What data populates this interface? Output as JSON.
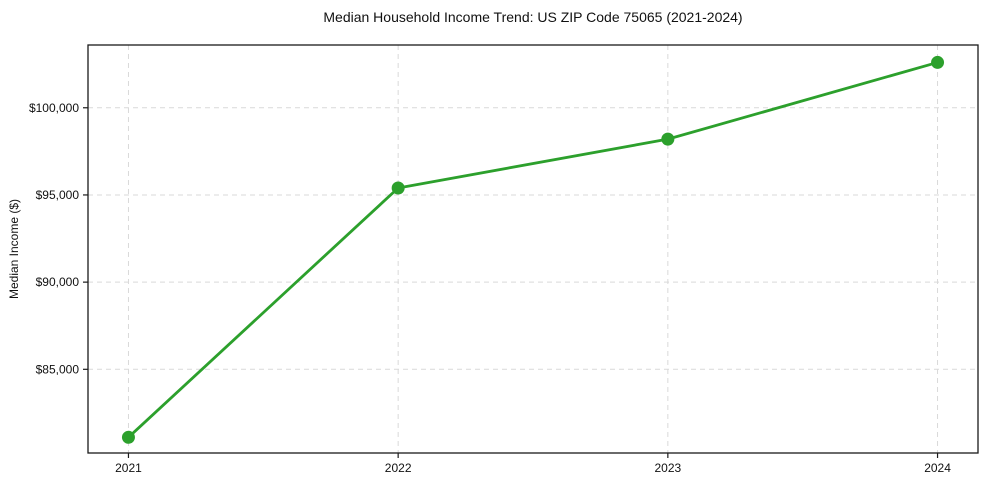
{
  "chart_data": {
    "type": "line",
    "title": "Median Household Income Trend: US ZIP Code 75065 (2021-2024)",
    "ylabel": "Median Income ($)",
    "xlabel": "",
    "series": [
      {
        "name": "Median Household Income",
        "x": [
          2021,
          2022,
          2023,
          2024
        ],
        "values": [
          81100,
          95400,
          98200,
          102600
        ]
      }
    ],
    "xlim": [
      2020.85,
      2024.15
    ],
    "ylim": [
      80200,
      103600
    ],
    "xticks": [
      2021,
      2022,
      2023,
      2024
    ],
    "xtick_labels": [
      "2021",
      "2022",
      "2023",
      "2024"
    ],
    "yticks": [
      85000,
      90000,
      95000,
      100000
    ],
    "ytick_labels": [
      "$85,000",
      "$90,000",
      "$95,000",
      "$100,000"
    ],
    "grid": true,
    "grid_style": "dashed",
    "legend": "none",
    "colors": {
      "line": "#2ca02c",
      "marker": "#2ca02c",
      "grid": "#d9d9d9",
      "spine": "#1a1a1a",
      "text": "#111111",
      "background": "#ffffff"
    }
  }
}
